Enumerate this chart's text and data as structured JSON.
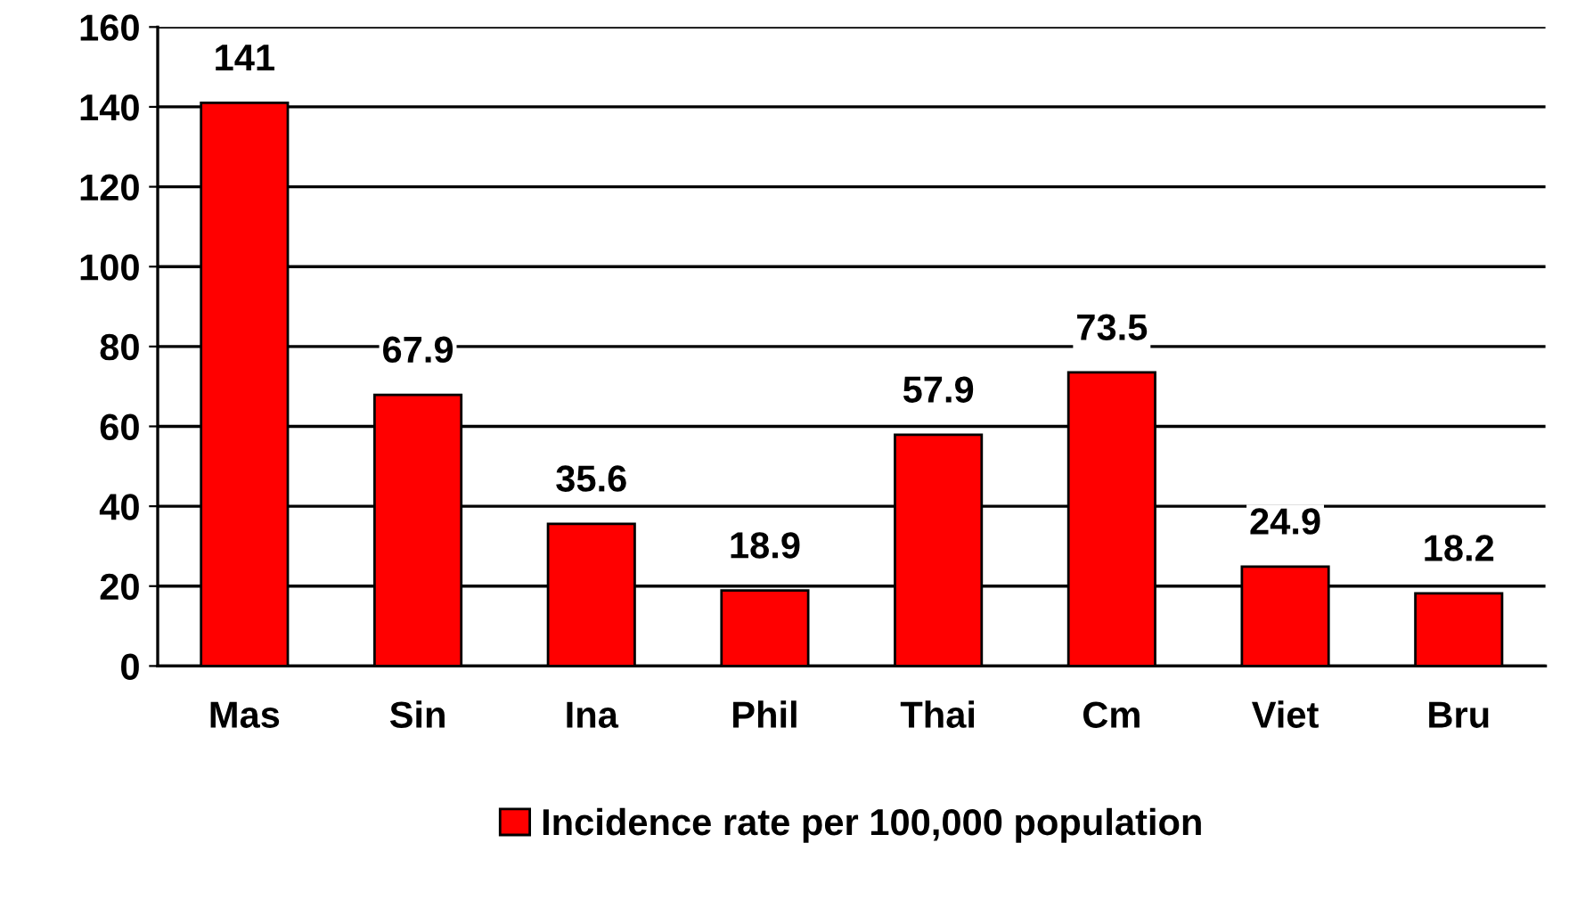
{
  "chart_data": {
    "type": "bar",
    "categories": [
      "Mas",
      "Sin",
      "Ina",
      "Phil",
      "Thai",
      "Cm",
      "Viet",
      "Bru"
    ],
    "series": [
      {
        "name": "Incidence rate per 100,000 population",
        "color": "#ff0000",
        "values": [
          141,
          67.9,
          35.6,
          18.9,
          57.9,
          73.5,
          24.9,
          18.2
        ]
      }
    ],
    "ylim": [
      0,
      160
    ],
    "yticks": [
      0,
      20,
      40,
      60,
      80,
      100,
      120,
      140,
      160
    ],
    "grid": "y",
    "legend": "bottom",
    "data_labels": true
  }
}
